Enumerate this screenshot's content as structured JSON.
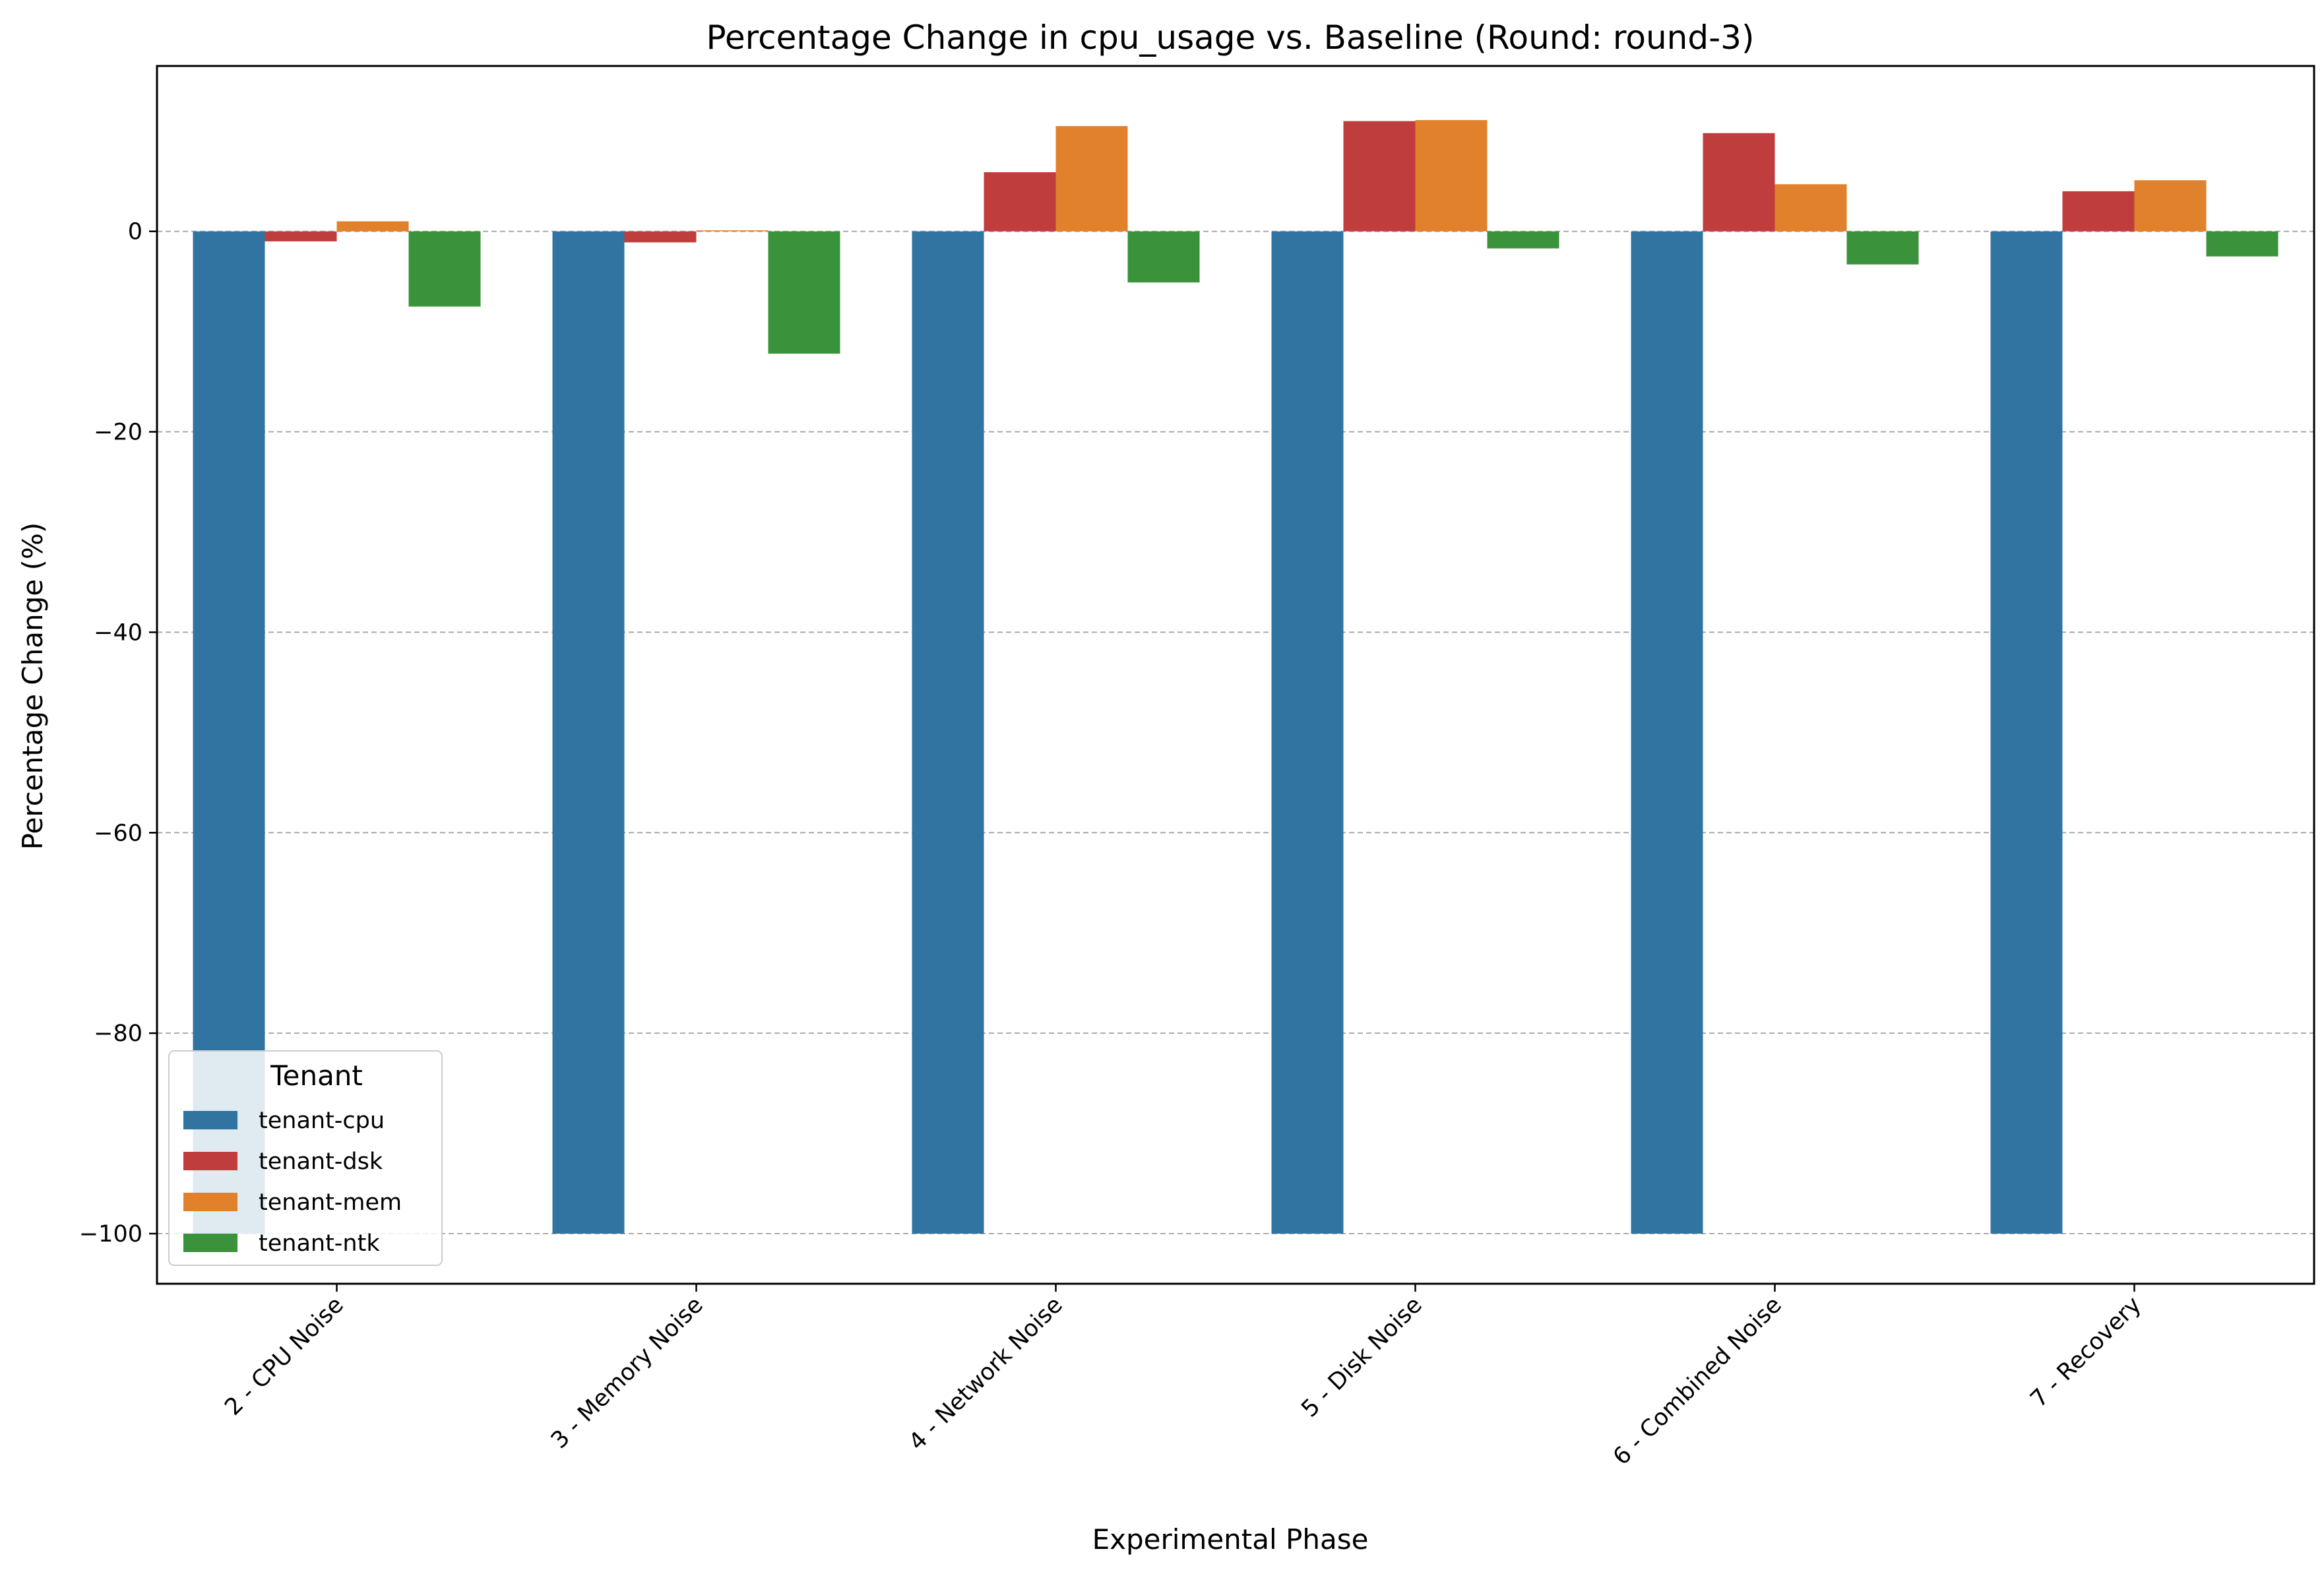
{
  "chart_data": {
    "type": "bar",
    "title": "Percentage Change in cpu_usage vs. Baseline (Round: round-3)",
    "xlabel": "Experimental Phase",
    "ylabel": "Percentage Change (%)",
    "ylim": [
      -105,
      16.5
    ],
    "yticks": [
      0,
      -20,
      -40,
      -60,
      -80,
      -100
    ],
    "ytick_labels": [
      "0",
      "−20",
      "−40",
      "−60",
      "−80",
      "−100"
    ],
    "grid": "horizontal dashed",
    "categories": [
      "2 - CPU Noise",
      "3 - Memory Noise",
      "4 - Network Noise",
      "5 - Disk Noise",
      "6 - Combined Noise",
      "7 - Recovery"
    ],
    "series": [
      {
        "name": "tenant-cpu",
        "color": "#3274a1",
        "values": [
          -100,
          -100,
          -100,
          -100,
          -100,
          -100
        ]
      },
      {
        "name": "tenant-dsk",
        "color": "#c03d3e",
        "values": [
          -1.0,
          -1.1,
          5.9,
          11.0,
          9.8,
          4.0
        ]
      },
      {
        "name": "tenant-mem",
        "color": "#e1812c",
        "values": [
          1.0,
          0.1,
          10.5,
          11.1,
          4.7,
          5.1
        ]
      },
      {
        "name": "tenant-ntk",
        "color": "#3a923a",
        "values": [
          -7.5,
          -12.2,
          -5.1,
          -1.7,
          -3.3,
          -2.5
        ]
      }
    ],
    "legend": {
      "title": "Tenant",
      "placement": "lower-left"
    }
  }
}
